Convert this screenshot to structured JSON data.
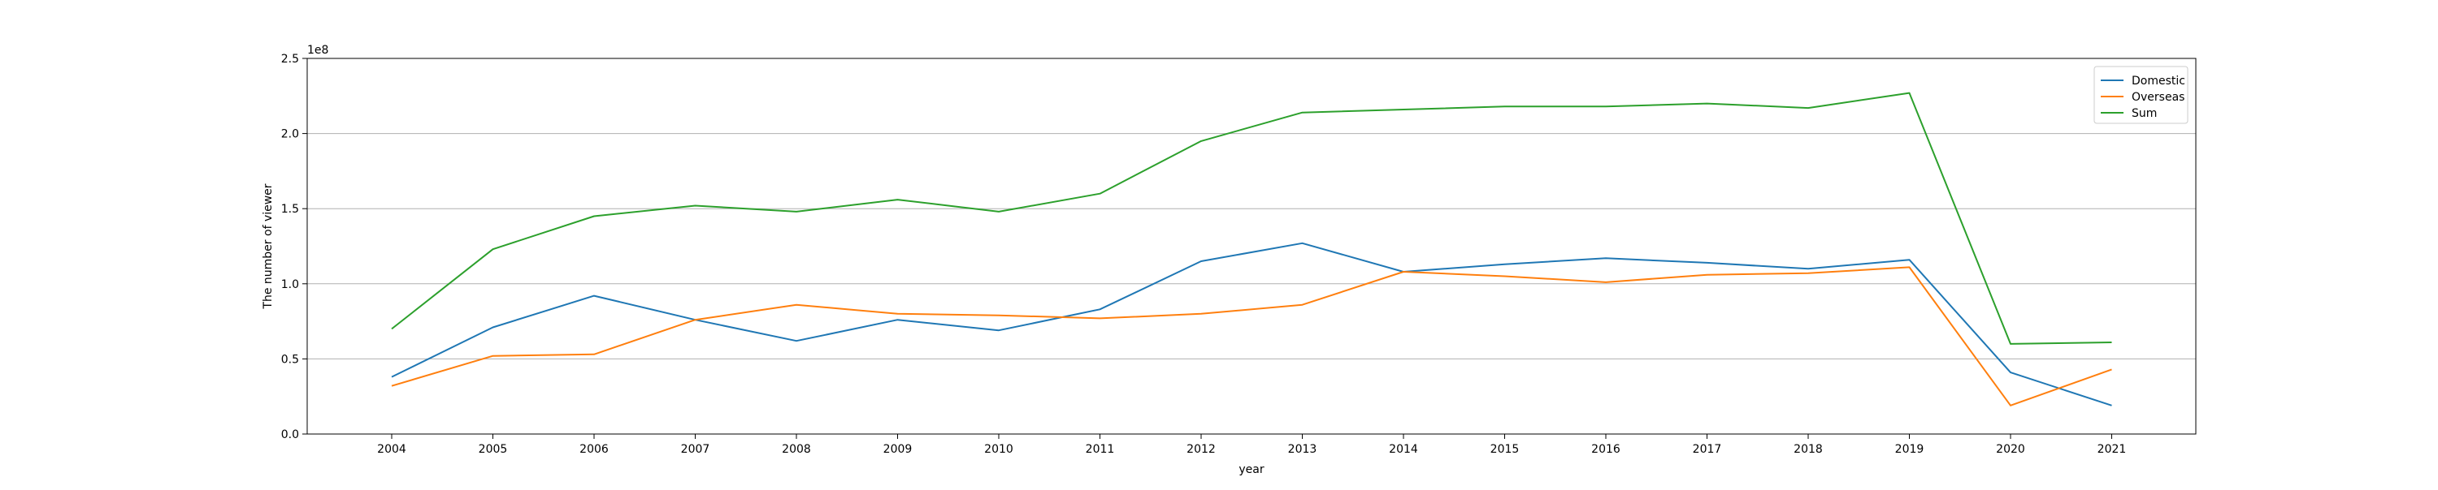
{
  "chart_data": {
    "type": "line",
    "xlabel": "year",
    "ylabel": "The number of viewer",
    "y_exponent_label": "1e8",
    "ylim": [
      0,
      2.5
    ],
    "y_ticks": [
      "0.0",
      "0.5",
      "1.0",
      "1.5",
      "2.0",
      "2.5"
    ],
    "y_tick_values": [
      0,
      0.5,
      1.0,
      1.5,
      2.0,
      2.5
    ],
    "grid": "horizontal",
    "legend_position": "top-right",
    "categories": [
      "2004",
      "2005",
      "2006",
      "2007",
      "2008",
      "2009",
      "2010",
      "2011",
      "2012",
      "2013",
      "2014",
      "2015",
      "2016",
      "2017",
      "2018",
      "2019",
      "2020",
      "2021"
    ],
    "series": [
      {
        "name": "Domestic",
        "color": "#1f77b4",
        "values": [
          0.38,
          0.71,
          0.92,
          0.76,
          0.62,
          0.76,
          0.69,
          0.83,
          1.15,
          1.27,
          1.08,
          1.13,
          1.17,
          1.14,
          1.1,
          1.16,
          0.41,
          0.19
        ]
      },
      {
        "name": "Overseas",
        "color": "#ff7f0e",
        "values": [
          0.32,
          0.52,
          0.53,
          0.76,
          0.86,
          0.8,
          0.79,
          0.77,
          0.8,
          0.86,
          1.08,
          1.05,
          1.01,
          1.06,
          1.07,
          1.11,
          0.19,
          0.43
        ]
      },
      {
        "name": "Sum",
        "color": "#2ca02c",
        "values": [
          0.7,
          1.23,
          1.45,
          1.52,
          1.48,
          1.56,
          1.48,
          1.6,
          1.95,
          2.14,
          2.16,
          2.18,
          2.18,
          2.2,
          2.17,
          2.27,
          0.6,
          0.61
        ]
      }
    ]
  }
}
